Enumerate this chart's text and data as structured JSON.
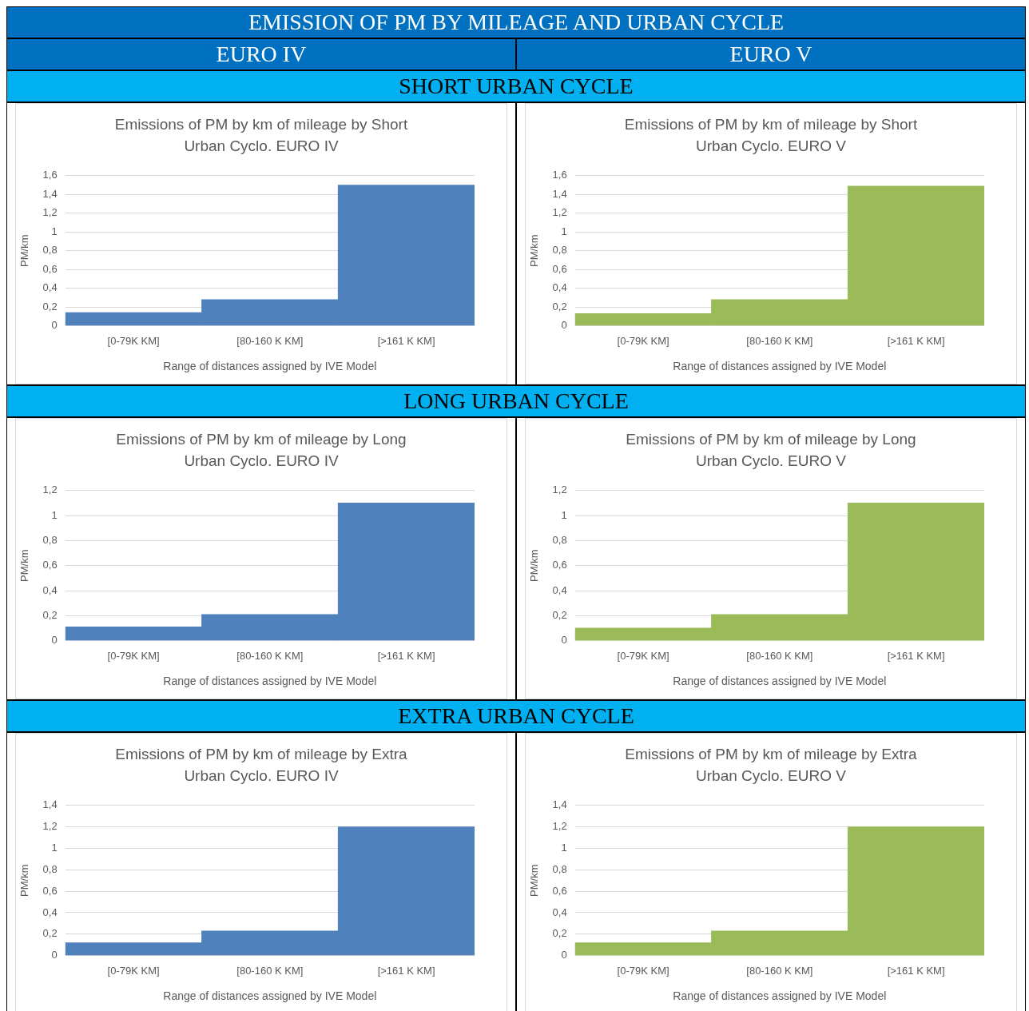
{
  "chart_data": [
    {
      "type": "bar",
      "title": "Emissions of PM by km of mileage by Short Urban Cyclo. EURO IV",
      "xlabel": "Range of distances assigned by IVE Model",
      "ylabel": "PM/km",
      "categories": [
        "[0-79K KM]",
        "[80-160 K KM]",
        "[>161 K KM]"
      ],
      "values": [
        0.14,
        0.28,
        1.5
      ],
      "color": "#4f81bd",
      "ylim": [
        0,
        1.6
      ],
      "yticks": [
        {
          "value": 0,
          "label": "0"
        },
        {
          "value": 0.2,
          "label": "0,2"
        },
        {
          "value": 0.4,
          "label": "0,4"
        },
        {
          "value": 0.6,
          "label": "0,6"
        },
        {
          "value": 0.8,
          "label": "0,8"
        },
        {
          "value": 1,
          "label": "1"
        },
        {
          "value": 1.2,
          "label": "1,2"
        },
        {
          "value": 1.4,
          "label": "1,4"
        },
        {
          "value": 1.6,
          "label": "1,6"
        }
      ],
      "grid": "y",
      "annotations": [
        "EMISSION OF PM BY MILEAGE AND URBAN CYCLE",
        "EURO IV",
        "SHORT URBAN CYCLE"
      ]
    },
    {
      "type": "bar",
      "title": "Emissions of PM by km of mileage by Short Urban Cyclo. EURO V",
      "xlabel": "Range of distances assigned by IVE Model",
      "ylabel": "PM/km",
      "categories": [
        "[0-79K KM]",
        "[80-160 K KM]",
        "[>161 K KM]"
      ],
      "values": [
        0.13,
        0.28,
        1.49
      ],
      "color": "#9bbb59",
      "ylim": [
        0,
        1.6
      ],
      "yticks": [
        {
          "value": 0,
          "label": "0"
        },
        {
          "value": 0.2,
          "label": "0,2"
        },
        {
          "value": 0.4,
          "label": "0,4"
        },
        {
          "value": 0.6,
          "label": "0,6"
        },
        {
          "value": 0.8,
          "label": "0,8"
        },
        {
          "value": 1,
          "label": "1"
        },
        {
          "value": 1.2,
          "label": "1,2"
        },
        {
          "value": 1.4,
          "label": "1,4"
        },
        {
          "value": 1.6,
          "label": "1,6"
        }
      ],
      "grid": "y",
      "annotations": [
        "EURO V"
      ]
    },
    {
      "type": "bar",
      "title": "Emissions of PM by km of mileage by Long Urban Cyclo. EURO IV",
      "xlabel": "Range of distances assigned by IVE Model",
      "ylabel": "PM/km",
      "categories": [
        "[0-79K KM]",
        "[80-160 K KM]",
        "[>161 K KM]"
      ],
      "values": [
        0.11,
        0.21,
        1.1
      ],
      "color": "#4f81bd",
      "ylim": [
        0,
        1.2
      ],
      "yticks": [
        {
          "value": 0,
          "label": "0"
        },
        {
          "value": 0.2,
          "label": "0,2"
        },
        {
          "value": 0.4,
          "label": "0,4"
        },
        {
          "value": 0.6,
          "label": "0,6"
        },
        {
          "value": 0.8,
          "label": "0,8"
        },
        {
          "value": 1,
          "label": "1"
        },
        {
          "value": 1.2,
          "label": "1,2"
        }
      ],
      "grid": "y",
      "annotations": [
        "LONG URBAN CYCLE"
      ]
    },
    {
      "type": "bar",
      "title": "Emissions of PM by km of mileage by Long Urban Cyclo. EURO V",
      "xlabel": "Range of distances assigned by IVE Model",
      "ylabel": "PM/km",
      "categories": [
        "[0-79K KM]",
        "[80-160 K KM]",
        "[>161 K KM]"
      ],
      "values": [
        0.1,
        0.21,
        1.1
      ],
      "color": "#9bbb59",
      "ylim": [
        0,
        1.2
      ],
      "yticks": [
        {
          "value": 0,
          "label": "0"
        },
        {
          "value": 0.2,
          "label": "0,2"
        },
        {
          "value": 0.4,
          "label": "0,4"
        },
        {
          "value": 0.6,
          "label": "0,6"
        },
        {
          "value": 0.8,
          "label": "0,8"
        },
        {
          "value": 1,
          "label": "1"
        },
        {
          "value": 1.2,
          "label": "1,2"
        }
      ],
      "grid": "y"
    },
    {
      "type": "bar",
      "title": "Emissions of PM by km of mileage by Extra Urban Cyclo. EURO IV",
      "xlabel": "Range of distances assigned by IVE Model",
      "ylabel": "PM/km",
      "categories": [
        "[0-79K KM]",
        "[80-160 K KM]",
        "[>161 K KM]"
      ],
      "values": [
        0.12,
        0.23,
        1.2
      ],
      "color": "#4f81bd",
      "ylim": [
        0,
        1.4
      ],
      "yticks": [
        {
          "value": 0,
          "label": "0"
        },
        {
          "value": 0.2,
          "label": "0,2"
        },
        {
          "value": 0.4,
          "label": "0,4"
        },
        {
          "value": 0.6,
          "label": "0,6"
        },
        {
          "value": 0.8,
          "label": "0,8"
        },
        {
          "value": 1,
          "label": "1"
        },
        {
          "value": 1.2,
          "label": "1,2"
        },
        {
          "value": 1.4,
          "label": "1,4"
        }
      ],
      "grid": "y",
      "annotations": [
        "EXTRA URBAN CYCLE"
      ]
    },
    {
      "type": "bar",
      "title": "Emissions of PM by km of mileage by Extra Urban Cyclo. EURO V",
      "xlabel": "Range of distances assigned by IVE Model",
      "ylabel": "PM/km",
      "categories": [
        "[0-79K KM]",
        "[80-160 K KM]",
        "[>161 K KM]"
      ],
      "values": [
        0.12,
        0.23,
        1.2
      ],
      "color": "#9bbb59",
      "ylim": [
        0,
        1.4
      ],
      "yticks": [
        {
          "value": 0,
          "label": "0"
        },
        {
          "value": 0.2,
          "label": "0,2"
        },
        {
          "value": 0.4,
          "label": "0,4"
        },
        {
          "value": 0.6,
          "label": "0,6"
        },
        {
          "value": 0.8,
          "label": "0,8"
        },
        {
          "value": 1,
          "label": "1"
        },
        {
          "value": 1.2,
          "label": "1,2"
        },
        {
          "value": 1.4,
          "label": "1,4"
        }
      ],
      "grid": "y"
    }
  ]
}
